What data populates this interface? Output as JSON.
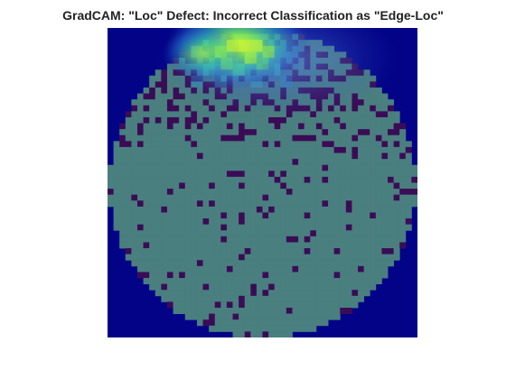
{
  "figure": {
    "title": "GradCAM: \"Loc\" Defect: Incorrect Classification as \"Edge-Loc\""
  },
  "wafer_map": {
    "grid_cells": 52,
    "colors": {
      "background": "#030387",
      "die_normal": "#4a7f7f",
      "die_defect": "#3b0c56",
      "heat_hot": "#a6f03a",
      "heat_warm": "#55e38e",
      "heat_mid": "#3fa4d8",
      "heat_cool": "#2360c4"
    },
    "heat_focus": "top edge of wafer, slightly right of center"
  }
}
